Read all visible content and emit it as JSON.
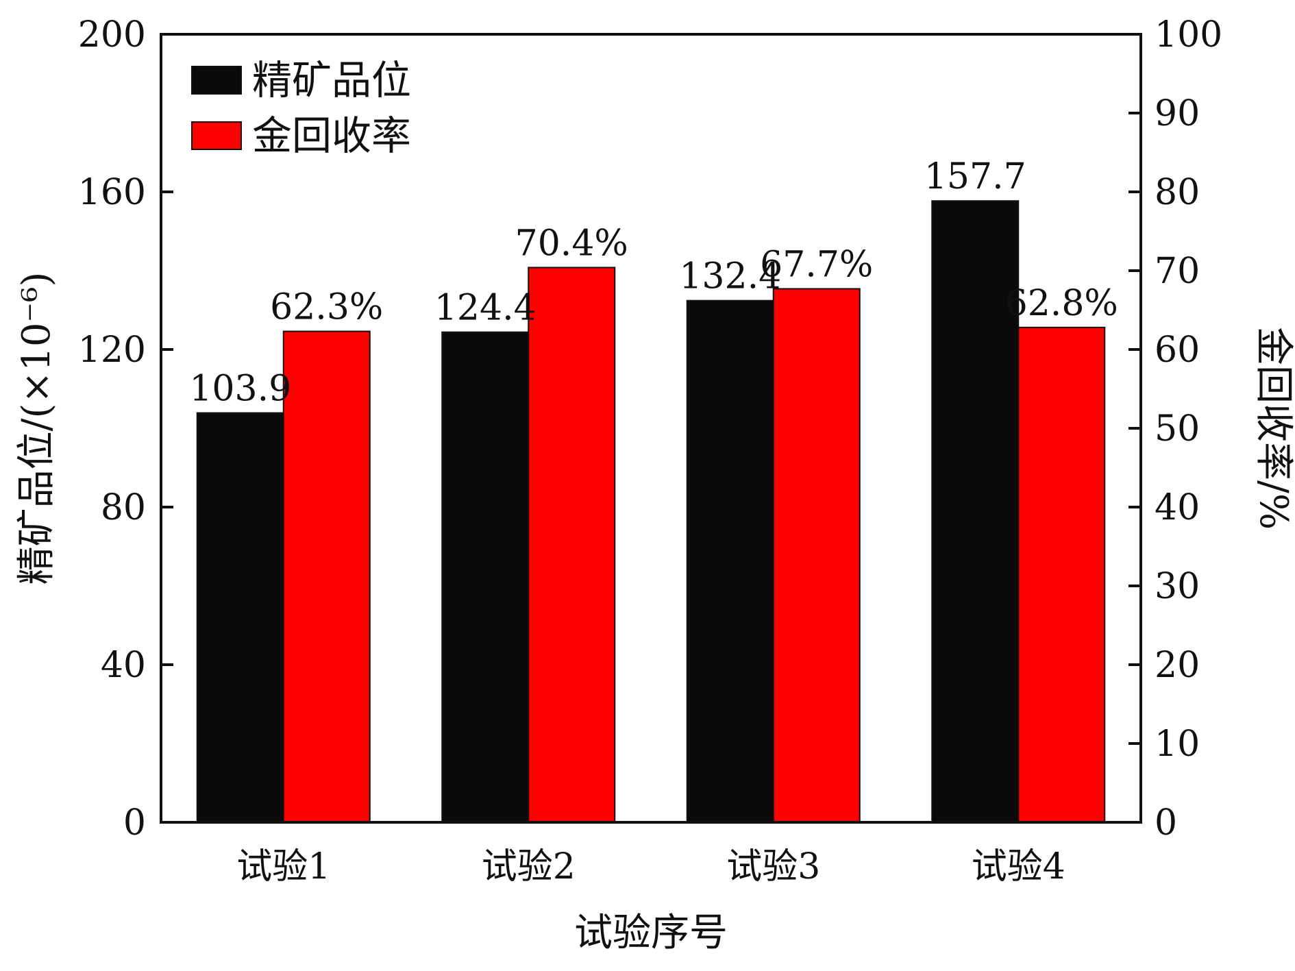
{
  "chart_data": {
    "type": "bar",
    "categories": [
      "试验1",
      "试验2",
      "试验3",
      "试验4"
    ],
    "xlabel": "试验序号",
    "ylabel_left": "精矿品位/(×10⁻⁶)",
    "ylabel_right": "金回收率/%",
    "ylim_left": [
      0,
      200
    ],
    "ylim_right": [
      0,
      100
    ],
    "yticks_left": [
      0,
      40,
      80,
      120,
      160,
      200
    ],
    "yticks_right": [
      0,
      10,
      20,
      30,
      40,
      50,
      60,
      70,
      80,
      90,
      100
    ],
    "grid": false,
    "legend_position": "top-left",
    "series": [
      {
        "name": "精矿品位",
        "axis": "left",
        "color": "#0a0a0a",
        "values": [
          103.9,
          124.4,
          132.4,
          157.7
        ],
        "labels": [
          "103.9",
          "124.4",
          "132.4",
          "157.7"
        ]
      },
      {
        "name": "金回收率",
        "axis": "right",
        "color": "#ff0000",
        "values": [
          62.3,
          70.4,
          67.7,
          62.8
        ],
        "labels": [
          "62.3%",
          "70.4%",
          "67.7%",
          "62.8%"
        ]
      }
    ]
  }
}
